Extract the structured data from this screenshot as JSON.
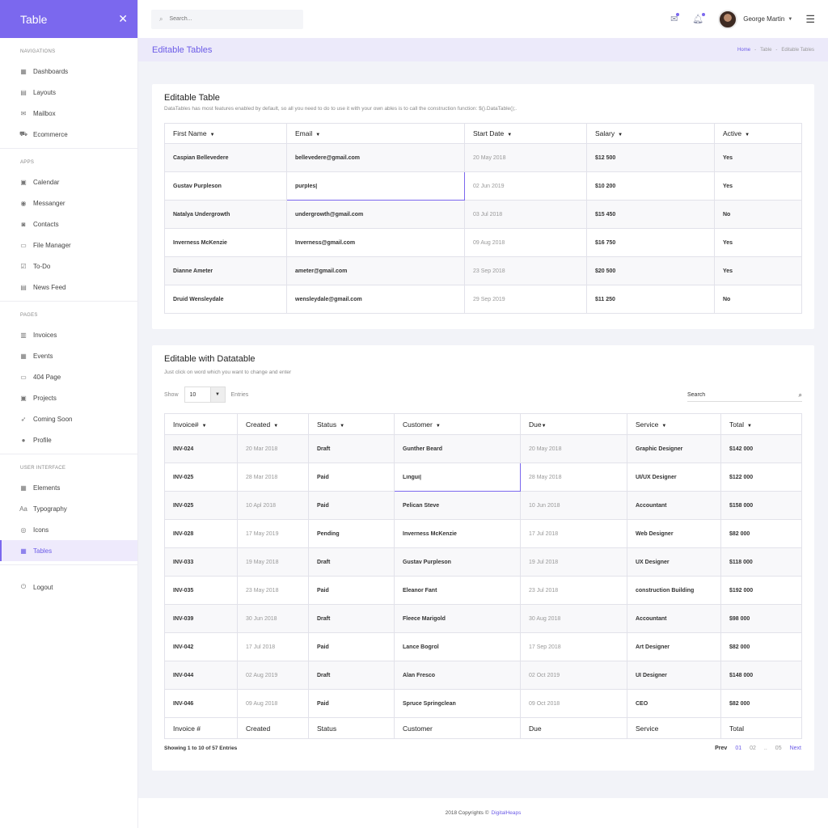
{
  "app": {
    "title": "Table",
    "toggle_icon": "collapse-icon"
  },
  "search": {
    "placeholder": "Search..."
  },
  "user": {
    "name": "George Martin"
  },
  "page": {
    "title": "Editable Tables"
  },
  "breadcrumb": {
    "home": "Home",
    "section": "Table",
    "current": "Editable Tables"
  },
  "sidebar": {
    "sections": [
      {
        "heading": "NAVIGATIONS",
        "items": [
          {
            "label": "Dashboards",
            "icon": "dashboard-icon",
            "glyph": "▦"
          },
          {
            "label": "Layouts",
            "icon": "layout-icon",
            "glyph": "▤"
          },
          {
            "label": "Mailbox",
            "icon": "mail-icon",
            "glyph": "✉"
          },
          {
            "label": "Ecommerce",
            "icon": "cart-icon",
            "glyph": "⛟"
          }
        ]
      },
      {
        "heading": "APPS",
        "items": [
          {
            "label": "Calendar",
            "icon": "calendar-icon",
            "glyph": "▣"
          },
          {
            "label": "Messanger",
            "icon": "chat-icon",
            "glyph": "◉"
          },
          {
            "label": "Contacts",
            "icon": "contacts-icon",
            "glyph": "◙"
          },
          {
            "label": "File Manager",
            "icon": "folder-icon",
            "glyph": "▭"
          },
          {
            "label": "To-Do",
            "icon": "todo-icon",
            "glyph": "☑"
          },
          {
            "label": "News Feed",
            "icon": "news-icon",
            "glyph": "▤"
          }
        ]
      },
      {
        "heading": "PAGES",
        "items": [
          {
            "label": "Invoices",
            "icon": "invoice-icon",
            "glyph": "▥"
          },
          {
            "label": "Events",
            "icon": "events-icon",
            "glyph": "▦"
          },
          {
            "label": "404 Page",
            "icon": "monitor-icon",
            "glyph": "▭"
          },
          {
            "label": "Projects",
            "icon": "projects-icon",
            "glyph": "▣"
          },
          {
            "label": "Coming Soon",
            "icon": "rocket-icon",
            "glyph": "➶"
          },
          {
            "label": "Profile",
            "icon": "user-icon",
            "glyph": "●"
          }
        ]
      },
      {
        "heading": "USER INTERFACE",
        "items": [
          {
            "label": "Elements",
            "icon": "elements-icon",
            "glyph": "▦"
          },
          {
            "label": "Typography",
            "icon": "typography-icon",
            "glyph": "Aa"
          },
          {
            "label": "Icons",
            "icon": "icons-icon",
            "glyph": "◎"
          },
          {
            "label": "Tables",
            "icon": "table-icon",
            "glyph": "▦",
            "active": true
          }
        ]
      }
    ],
    "logout": {
      "label": "Logout",
      "icon": "power-icon",
      "glyph": "⏻"
    }
  },
  "table1": {
    "title": "Editable Table",
    "subtitle": "DataTables has most features enabled by default, so all you need to do to use it with your own ables is to call the construction function: $().DataTable();.",
    "headers": [
      "First Name",
      "Email",
      "Start Date",
      "Salary",
      "Active"
    ],
    "rows": [
      [
        "Caspian Bellevedere",
        "bellevedere@gmail.com",
        "20 May 2018",
        "$12 500",
        "Yes"
      ],
      [
        "Gustav Purpleson",
        "purples|",
        "02 Jun 2019",
        "$10 200",
        "Yes"
      ],
      [
        "Natalya Undergrowth",
        "undergrowth@gmail.com",
        "03 Jul 2018",
        "$15 450",
        "No"
      ],
      [
        "Inverness McKenzie",
        "Inverness@gmail.com",
        "09 Aug 2018",
        "$16 750",
        "Yes"
      ],
      [
        "Dianne Ameter",
        "ameter@gmail.com",
        "23 Sep 2018",
        "$20 500",
        "Yes"
      ],
      [
        "Druid Wensleydale",
        "wensleydale@gmail.com",
        "29 Sep 2019",
        "$11 250",
        "No"
      ]
    ]
  },
  "table2": {
    "title": "Editable with Datatable",
    "subtitle": "Just click on word which you want to change and enter",
    "show_label": "Show",
    "entries_value": "10",
    "entries_label": "Entries",
    "search_label": "Search",
    "headers": [
      "Invoice#",
      "Created",
      "Status",
      "Customer",
      "Due",
      "Service",
      "Total"
    ],
    "footers": [
      "Invoice #",
      "Created",
      "Status",
      "Customer",
      "Due",
      "Service",
      "Total"
    ],
    "rows": [
      [
        "INV-024",
        "20 Mar 2018",
        "Draft",
        "Gunther Beard",
        "20 May 2018",
        "Graphic Designer",
        "$142 000"
      ],
      [
        "INV-025",
        "28 Mar 2018",
        "Paid",
        "Lingui|",
        "28 May 2018",
        "UI/UX Designer",
        "$122 000"
      ],
      [
        "INV-025",
        "10 Apl 2018",
        "Paid",
        "Pelican Steve",
        "10 Jun 2018",
        "Accountant",
        "$158 000"
      ],
      [
        "INV-028",
        "17 May 2019",
        "Pending",
        "Inverness McKenzie",
        "17 Jul 2018",
        "Web Designer",
        "$82 000"
      ],
      [
        "INV-033",
        "19 May 2018",
        "Draft",
        "Gustav Purpleson",
        "19 Jul 2018",
        "UX Designer",
        "$118 000"
      ],
      [
        "INV-035",
        "23 May 2018",
        "Paid",
        "Eleanor Fant",
        "23 Jul 2018",
        "construction Building",
        "$192 000"
      ],
      [
        "INV-039",
        "30 Jun 2018",
        "Draft",
        "Fleece Marigold",
        "30 Aug 2018",
        "Accountant",
        "$98 000"
      ],
      [
        "INV-042",
        "17 Jul 2018",
        "Paid",
        "Lance Bogrol",
        "17 Sep 2018",
        "Art Designer",
        "$82 000"
      ],
      [
        "INV-044",
        "02 Aug 2019",
        "Draft",
        "Alan Fresco",
        "02 Oct 2019",
        "UI Designer",
        "$148 000"
      ],
      [
        "INV-046",
        "09 Aug 2018",
        "Paid",
        "Spruce Springclean",
        "09 Oct 2018",
        "CEO",
        "$82 000"
      ]
    ],
    "showing": "Showing 1 to 10 of 57 Entries",
    "pagination": {
      "prev": "Prev",
      "pages": [
        "01",
        "02",
        "..",
        "05"
      ],
      "next": "Next"
    }
  },
  "footer": {
    "text": "2018 Copyrights ©",
    "brand": "DigitalHeaps"
  },
  "colors": {
    "accent": "#7b68ee",
    "title_bar": "#eceafa"
  }
}
